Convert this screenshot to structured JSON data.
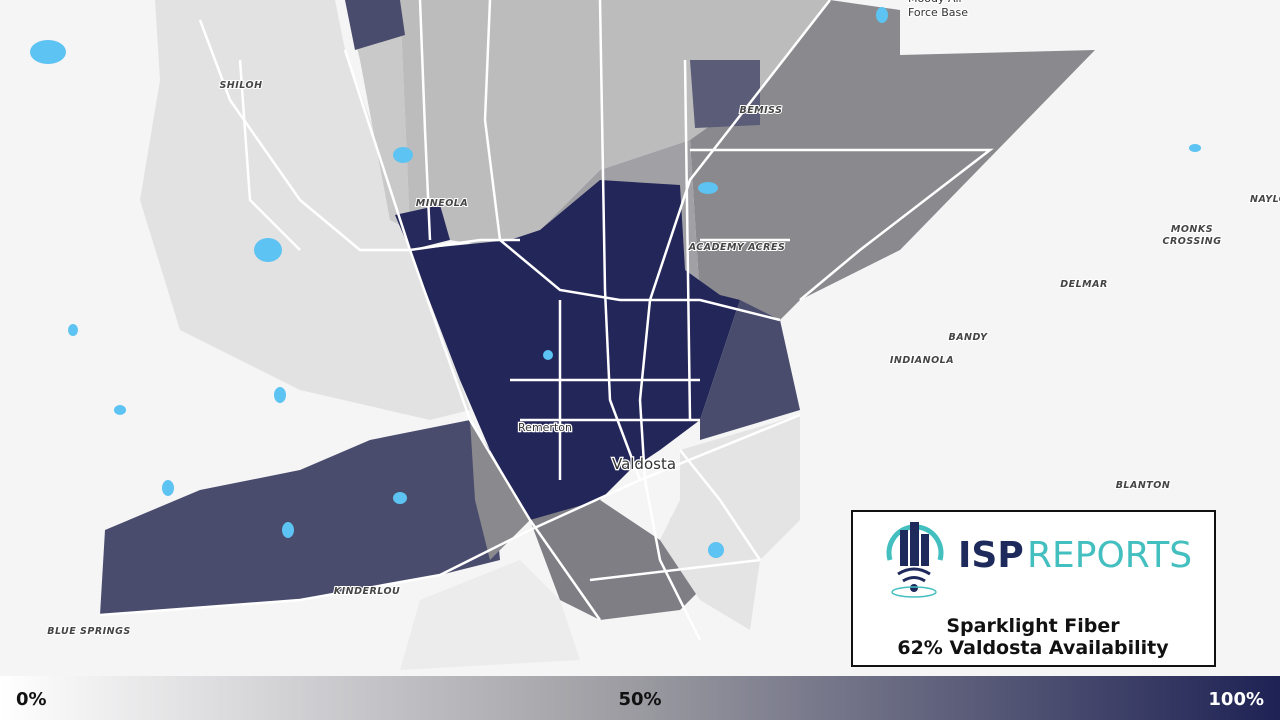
{
  "map": {
    "places": [
      {
        "label": "Moody Air"
      },
      {
        "label": "Force Base"
      },
      {
        "label": "SHILOH"
      },
      {
        "label": "MINEOLA"
      },
      {
        "label": "BEMISS"
      },
      {
        "label": "ACADEMY ACRES"
      },
      {
        "label": "MONKS"
      },
      {
        "label": "CROSSING"
      },
      {
        "label": "NAYLO"
      },
      {
        "label": "DELMAR"
      },
      {
        "label": "BANDY"
      },
      {
        "label": "INDIANOLA"
      },
      {
        "label": "BLANTON"
      },
      {
        "label": "KINDERLOU"
      },
      {
        "label": "BLUE SPRINGS"
      },
      {
        "label": "Remerton"
      },
      {
        "label": "Valdosta"
      }
    ]
  },
  "legend_card": {
    "brand_1": "ISP",
    "brand_2": "REPORTS",
    "line_1": "Sparklight Fiber",
    "line_2": "62% Valdosta Availability"
  },
  "color_scale": {
    "labels": [
      "0%",
      "50%",
      "100%"
    ]
  }
}
